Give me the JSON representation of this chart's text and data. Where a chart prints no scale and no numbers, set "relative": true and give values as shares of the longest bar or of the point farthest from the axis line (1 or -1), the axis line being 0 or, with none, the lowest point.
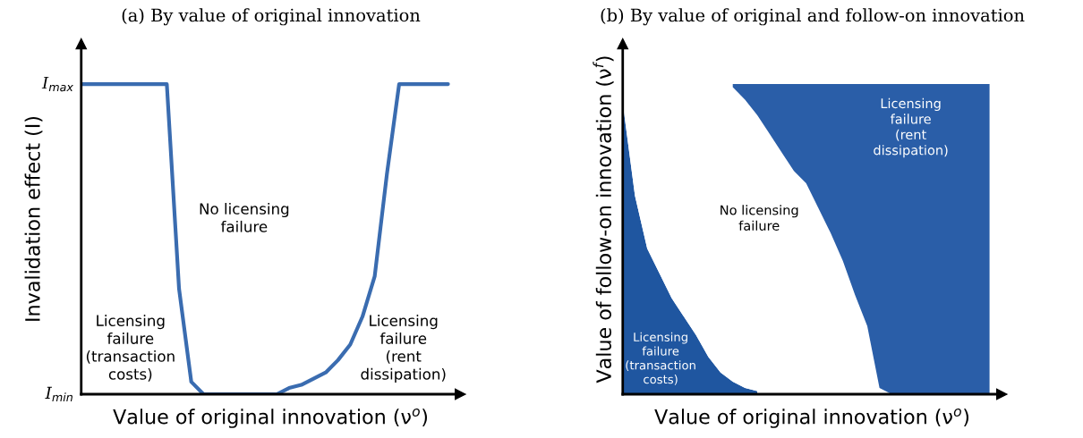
{
  "chart_data": [
    {
      "type": "line",
      "relative": true,
      "title": "(a) By value of original innovation",
      "xlabel": "Value of original innovation (ν$^{o}$)",
      "ylabel": "Invalidation effect (I)",
      "categories": [
        null,
        null,
        null,
        null,
        null,
        null,
        null,
        null,
        null,
        null,
        null,
        null,
        null,
        null,
        null,
        null,
        null,
        null,
        null,
        null,
        null,
        null,
        null,
        null,
        null,
        null,
        null,
        null,
        null,
        null,
        null
      ],
      "series": [
        {
          "color": "#3a6cb0",
          "values": [
            1,
            1,
            1,
            1,
            1,
            1,
            1,
            1,
            0.34,
            0.04,
            0,
            0,
            0,
            0,
            0,
            0,
            0,
            0.02,
            0.03,
            0.05,
            0.07,
            0.11,
            0.16,
            0.25,
            0.38,
            0.71,
            1,
            1,
            1,
            1,
            1
          ]
        }
      ],
      "annotations": [
        "I$_{max}$",
        "I$_{min}$",
        "No licensing\nfailure",
        "Licensing\nfailure\n(transaction\ncosts)",
        "Licensing\nfailure\n(rent\ndissipation)"
      ]
    },
    {
      "type": "area",
      "relative": true,
      "stacked": true,
      "title": "(b) By value of original and follow-on innovation",
      "xlabel": "Value of original innovation (ν$^{o}$)",
      "ylabel": "Value of follow-on innovation (ν$^{f}$)",
      "categories": [
        null,
        null,
        null,
        null,
        null,
        null,
        null,
        null,
        null,
        null,
        null,
        null,
        null,
        null,
        null,
        null,
        null,
        null,
        null,
        null,
        null,
        null,
        null,
        null,
        null,
        null,
        null,
        null,
        null,
        null,
        null
      ],
      "series": [
        {
          "color": "#1f56a0",
          "values": [
            0.94,
            0.64,
            0.47,
            0.39,
            0.31,
            0.25,
            0.19,
            0.12,
            0.07,
            0.04,
            0.02,
            0.01,
            null,
            null,
            null,
            null,
            null,
            null,
            null,
            null,
            null,
            null,
            null,
            null,
            null,
            null,
            null,
            null,
            null,
            null,
            null
          ]
        },
        {
          "color": "#ffffff",
          "values": [
            0.06,
            0.36,
            0.53,
            0.61,
            0.69,
            0.75,
            0.81,
            0.88,
            0.93,
            0.95,
            0.93,
            0.89,
            0.84,
            0.78,
            0.72,
            0.68,
            0.6,
            0.52,
            0.43,
            0.32,
            0.22,
            0.02,
            null,
            null,
            null,
            null,
            null,
            null,
            null,
            null,
            null
          ]
        },
        {
          "color": "#2a5ea8",
          "values": [
            null,
            null,
            null,
            null,
            null,
            null,
            null,
            null,
            null,
            0.01,
            0.05,
            0.1,
            0.16,
            0.22,
            0.28,
            0.32,
            0.4,
            0.48,
            0.57,
            0.68,
            0.78,
            0.98,
            1,
            1,
            1,
            1,
            1,
            1,
            1,
            1,
            1
          ]
        }
      ],
      "annotations": [
        "No licensing\nfailure",
        "Licensing\nfailure\n(transaction\ncosts)",
        "Licensing\nfailure\n(rent\ndissipation)"
      ]
    }
  ]
}
